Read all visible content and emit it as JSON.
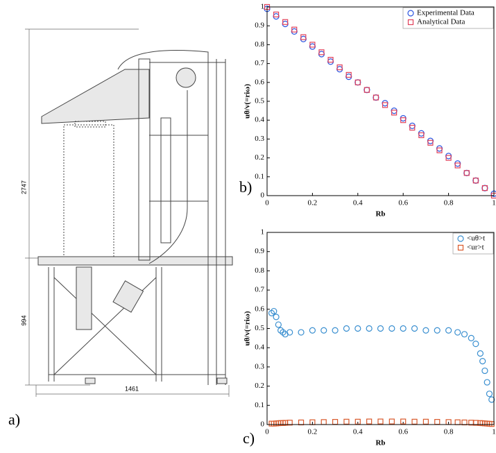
{
  "drawing": {
    "dimensions": [
      "2747",
      "994",
      "1461"
    ]
  },
  "panel_labels": [
    "a)",
    "b)",
    "c)"
  ],
  "chart_data": [
    {
      "type": "scatter",
      "xlabel": "Rb",
      "ylabel": "uθ/v(=riω)",
      "xlim": [
        0,
        1
      ],
      "ylim": [
        0,
        1
      ],
      "xticks": [
        0,
        0.2,
        0.4,
        0.6,
        0.8,
        1
      ],
      "yticks": [
        0,
        0.1,
        0.2,
        0.3,
        0.4,
        0.5,
        0.6,
        0.7,
        0.8,
        0.9,
        1
      ],
      "legend": "upper right",
      "x": [
        0,
        0.04,
        0.08,
        0.12,
        0.16,
        0.2,
        0.24,
        0.28,
        0.32,
        0.36,
        0.4,
        0.44,
        0.48,
        0.52,
        0.56,
        0.6,
        0.64,
        0.68,
        0.72,
        0.76,
        0.8,
        0.84,
        0.88,
        0.92,
        0.96,
        1
      ],
      "series": [
        {
          "name": "Experimental Data",
          "color": "#2b55e0",
          "marker": "circle",
          "values": [
            0.99,
            0.95,
            0.91,
            0.87,
            0.83,
            0.79,
            0.75,
            0.71,
            0.67,
            0.63,
            0.6,
            0.56,
            0.52,
            0.49,
            0.45,
            0.41,
            0.37,
            0.33,
            0.29,
            0.25,
            0.21,
            0.17,
            0.12,
            0.08,
            0.04,
            0.01
          ]
        },
        {
          "name": "Analytical Data",
          "color": "#e0405a",
          "marker": "square",
          "values": [
            1,
            0.96,
            0.92,
            0.88,
            0.84,
            0.8,
            0.76,
            0.72,
            0.68,
            0.64,
            0.6,
            0.56,
            0.52,
            0.48,
            0.44,
            0.4,
            0.36,
            0.32,
            0.28,
            0.24,
            0.2,
            0.16,
            0.12,
            0.08,
            0.04,
            0
          ]
        }
      ]
    },
    {
      "type": "scatter",
      "xlabel": "Rb",
      "ylabel": "uθ/v(=riω)",
      "xlim": [
        0,
        1
      ],
      "ylim": [
        0,
        1
      ],
      "xticks": [
        0,
        0.2,
        0.4,
        0.6,
        0.8,
        1
      ],
      "yticks": [
        0,
        0.1,
        0.2,
        0.3,
        0.4,
        0.5,
        0.6,
        0.7,
        0.8,
        0.9,
        1
      ],
      "legend": "upper right",
      "x": [
        0.02,
        0.03,
        0.04,
        0.05,
        0.06,
        0.07,
        0.08,
        0.1,
        0.15,
        0.2,
        0.25,
        0.3,
        0.35,
        0.4,
        0.45,
        0.5,
        0.55,
        0.6,
        0.65,
        0.7,
        0.75,
        0.8,
        0.84,
        0.87,
        0.9,
        0.92,
        0.94,
        0.95,
        0.96,
        0.97,
        0.98,
        0.99
      ],
      "series": [
        {
          "name": "<uθ>t",
          "color": "#3a8fd0",
          "marker": "circle",
          "values": [
            0.58,
            0.59,
            0.56,
            0.52,
            0.49,
            0.48,
            0.47,
            0.48,
            0.48,
            0.49,
            0.49,
            0.49,
            0.5,
            0.5,
            0.5,
            0.5,
            0.5,
            0.5,
            0.5,
            0.49,
            0.49,
            0.49,
            0.48,
            0.47,
            0.45,
            0.42,
            0.37,
            0.33,
            0.28,
            0.22,
            0.16,
            0.13
          ]
        },
        {
          "name": "<ur>t",
          "color": "#d9592b",
          "marker": "square",
          "values": [
            0.005,
            0.005,
            0.006,
            0.007,
            0.008,
            0.008,
            0.009,
            0.01,
            0.011,
            0.012,
            0.013,
            0.014,
            0.015,
            0.015,
            0.016,
            0.016,
            0.016,
            0.016,
            0.015,
            0.015,
            0.014,
            0.013,
            0.012,
            0.011,
            0.01,
            0.009,
            0.008,
            0.007,
            0.006,
            0.005,
            0.004,
            0.003
          ]
        }
      ]
    }
  ]
}
